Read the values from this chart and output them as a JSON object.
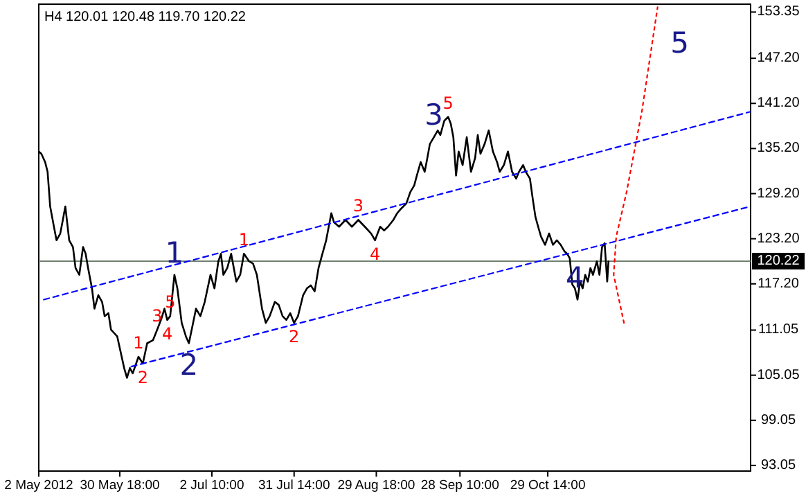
{
  "chart_data": {
    "type": "line",
    "title": "H4  120.01 120.48 119.70 120.22",
    "xlim": [
      "2012-05-02T00:00",
      "2013-01-09T13:00"
    ],
    "ylim": [
      92.3,
      154.4
    ],
    "xticks": [
      {
        "value": "2012-05-02T00:00",
        "label": "2 May 2012"
      },
      {
        "value": "2012-05-30T18:00",
        "label": "30 May 18:00"
      },
      {
        "value": "2012-07-02T10:00",
        "label": "2 Jul 10:00"
      },
      {
        "value": "2012-07-31T14:00",
        "label": "31 Jul 14:00"
      },
      {
        "value": "2012-08-29T18:00",
        "label": "29 Aug 18:00"
      },
      {
        "value": "2012-09-28T10:00",
        "label": "28 Sep 10:00"
      },
      {
        "value": "2012-10-29T14:00",
        "label": "29 Oct 14:00"
      }
    ],
    "yticks": [
      93.05,
      99.05,
      105.05,
      111.05,
      {
        "value": 117.2,
        "label": "117.20"
      },
      {
        "value": 123.2,
        "label": "123.20"
      },
      {
        "value": 129.2,
        "label": "129.20"
      },
      {
        "value": 135.2,
        "label": "135.20"
      },
      {
        "value": 141.2,
        "label": "141.20"
      },
      {
        "value": 147.2,
        "label": "147.20"
      },
      153.35
    ],
    "grid": false,
    "ref_lines": [
      {
        "axis": "y",
        "value": 120.22,
        "label": "120.22",
        "color": "#708070"
      }
    ],
    "annotations": [
      {
        "text": "1",
        "x": "2012-06-19T03:00",
        "y": 118.4
      },
      {
        "text": "2",
        "x": "2012-06-24T06:00",
        "y": 109.3
      },
      {
        "text": "3",
        "x": "2012-09-19T04:00",
        "y": 136.7
      },
      {
        "text": "4",
        "x": "2012-11-08T05:00",
        "y": 115.1
      },
      {
        "text": "5",
        "x": "2012-12-07T13:00",
        "y": 154.0
      },
      {
        "text": "1",
        "x": "2012-07-13T19:00",
        "y": 121.2
      },
      {
        "text": "3",
        "x": "2012-08-23T09:00",
        "y": 125.7
      },
      {
        "text": "5",
        "x": "2012-09-24T06:00",
        "y": 139.4
      },
      {
        "text": "4",
        "x": "2012-08-29T07:00",
        "y": 123.0
      },
      {
        "text": "2",
        "x": "2012-07-31T14:00",
        "y": 112.0
      },
      {
        "text": "1",
        "x": "2012-06-06T09:00",
        "y": 107.5
      },
      {
        "text": "2",
        "x": "2012-06-07T22:00",
        "y": 106.6
      },
      {
        "text": "3",
        "x": "2012-06-13T00:00",
        "y": 111.1
      },
      {
        "text": "4",
        "x": "2012-06-16T14:00",
        "y": 112.4
      },
      {
        "text": "5",
        "x": "2012-06-17T15:00",
        "y": 112.9
      }
    ],
    "series": [
      {
        "color": "#000000",
        "line_style": "solid",
        "x": [
          "2012-05-02T00:00",
          "2012-05-02T22:00",
          "2012-05-04T06:00",
          "2012-05-05T03:00",
          "2012-05-06T01:00",
          "2012-05-07T09:00",
          "2012-05-08T07:00",
          "2012-05-09T15:00",
          "2012-05-10T13:00",
          "2012-05-11T10:00",
          "2012-05-12T19:00",
          "2012-05-14T03:00",
          "2012-05-15T01:00",
          "2012-05-16T09:00",
          "2012-05-17T17:00",
          "2012-05-18T15:00",
          "2012-05-19T12:00",
          "2012-05-20T21:00",
          "2012-05-21T18:00",
          "2012-05-23T03:00",
          "2012-05-24T11:00",
          "2012-05-25T09:00",
          "2012-05-26T17:00",
          "2012-05-27T15:00",
          "2012-05-29T20:00",
          "2012-06-01T07:00",
          "2012-06-02T07:00",
          "2012-06-03T08:00",
          "2012-06-04T08:00",
          "2012-06-06T09:00",
          "2012-06-07T22:00",
          "2012-06-09T11:00",
          "2012-06-11T12:00",
          "2012-06-13T00:00",
          "2012-06-14T13:00",
          "2012-06-15T14:00",
          "2012-06-16T14:00",
          "2012-06-17T15:00",
          "2012-06-19T03:00",
          "2012-06-20T04:00",
          "2012-06-21T17:00",
          "2012-06-23T05:00",
          "2012-06-24T06:00",
          "2012-06-25T06:00",
          "2012-06-26T19:00",
          "2012-06-28T08:00",
          "2012-06-29T21:00",
          "2012-07-01T22:00",
          "2012-07-03T08:00",
          "2012-07-04T17:00",
          "2012-07-05T15:00",
          "2012-07-06T12:00",
          "2012-07-07T21:00",
          "2012-07-09T06:00",
          "2012-07-11T02:00",
          "2012-07-12T11:00",
          "2012-07-13T19:00",
          "2012-07-15T15:00",
          "2012-07-17T00:00",
          "2012-07-18T09:00",
          "2012-07-20T05:00",
          "2012-07-21T13:00",
          "2012-07-22T22:00",
          "2012-07-24T18:00",
          "2012-07-26T03:00",
          "2012-07-27T12:00",
          "2012-07-28T20:00",
          "2012-07-30T05:00",
          "2012-07-31T14:00",
          "2012-08-01T23:00",
          "2012-08-03T19:00",
          "2012-08-05T03:00",
          "2012-08-06T12:00",
          "2012-08-07T21:00",
          "2012-08-09T06:00",
          "2012-08-10T15:00",
          "2012-08-11T23:00",
          "2012-08-12T21:00",
          "2012-08-13T19:00",
          "2012-08-14T17:00",
          "2012-08-16T13:00",
          "2012-08-18T20:00",
          "2012-08-21T02:00",
          "2012-08-23T09:00",
          "2012-08-25T16:00",
          "2012-08-27T22:00",
          "2012-08-29T07:00",
          "2012-08-31T03:00",
          "2012-09-01T13:00",
          "2012-09-02T22:00",
          "2012-09-04T19:00",
          "2012-09-06T04:00",
          "2012-09-07T13:00",
          "2012-09-09T10:00",
          "2012-09-10T19:00",
          "2012-09-12T05:00",
          "2012-09-13T03:00",
          "2012-09-14T12:00",
          "2012-09-15T22:00",
          "2012-09-16T20:00",
          "2012-09-17T18:00",
          "2012-09-19T04:00",
          "2012-09-20T13:00",
          "2012-09-21T11:00",
          "2012-09-22T21:00",
          "2012-09-24T06:00",
          "2012-09-25T04:00",
          "2012-09-26T02:00",
          "2012-09-27T01:00",
          "2012-09-27T23:00",
          "2012-09-29T09:00",
          "2012-09-30T20:00",
          "2012-10-02T08:00",
          "2012-10-03T19:00",
          "2012-10-04T18:00",
          "2012-10-05T17:00",
          "2012-10-07T04:00",
          "2012-10-08T15:00",
          "2012-10-10T03:00",
          "2012-10-11T14:00",
          "2012-10-12T13:00",
          "2012-10-14T00:00",
          "2012-10-15T11:00",
          "2012-10-16T22:00",
          "2012-10-18T09:00",
          "2012-10-19T09:00",
          "2012-10-20T20:00",
          "2012-10-21T19:00",
          "2012-10-23T06:00",
          "2012-10-24T06:00",
          "2012-10-25T05:00",
          "2012-10-26T04:00",
          "2012-10-27T04:00",
          "2012-10-28T15:00",
          "2012-10-30T01:00",
          "2012-10-31T10:00",
          "2012-11-01T19:00",
          "2012-11-03T04:00",
          "2012-11-04T13:00",
          "2012-11-05T11:00",
          "2012-11-06T09:00",
          "2012-11-07T07:00",
          "2012-11-08T05:00",
          "2012-11-09T03:00",
          "2012-11-10T01:00",
          "2012-11-10T23:00",
          "2012-11-11T21:00",
          "2012-11-12T19:00",
          "2012-11-13T17:00",
          "2012-11-14T15:00",
          "2012-11-16T00:00",
          "2012-11-16T22:00",
          "2012-11-17T20:00",
          "2012-11-18T18:00",
          "2012-11-19T16:00",
          "2012-11-20T03:00"
        ],
        "values": [
          134.8,
          134.5,
          133.4,
          132.1,
          127.5,
          124.8,
          123.0,
          123.9,
          125.7,
          127.5,
          123.0,
          122.1,
          119.3,
          118.4,
          122.1,
          121.2,
          119.3,
          116.6,
          113.9,
          115.7,
          114.8,
          112.9,
          113.3,
          111.1,
          110.2,
          106.0,
          104.7,
          106.0,
          105.3,
          107.5,
          106.6,
          109.3,
          109.7,
          111.1,
          112.6,
          113.9,
          112.4,
          112.9,
          118.4,
          116.6,
          112.0,
          110.2,
          109.3,
          111.1,
          113.9,
          112.9,
          114.8,
          118.4,
          116.6,
          120.2,
          121.2,
          118.4,
          119.3,
          121.2,
          117.5,
          118.4,
          121.2,
          120.2,
          119.9,
          118.4,
          113.9,
          112.0,
          112.9,
          114.8,
          114.4,
          112.9,
          112.4,
          113.3,
          112.0,
          112.9,
          115.7,
          116.6,
          117.0,
          116.2,
          119.3,
          121.2,
          123.0,
          124.8,
          126.6,
          125.4,
          124.8,
          125.7,
          124.8,
          125.7,
          124.8,
          123.9,
          123.0,
          124.8,
          124.3,
          124.8,
          125.7,
          126.6,
          127.2,
          127.9,
          129.4,
          130.3,
          131.6,
          133.4,
          132.1,
          133.9,
          135.8,
          136.7,
          137.6,
          137.0,
          138.9,
          139.4,
          138.5,
          136.7,
          131.6,
          134.8,
          133.0,
          136.7,
          132.1,
          133.9,
          137.0,
          134.5,
          135.8,
          137.6,
          134.8,
          133.4,
          132.1,
          133.0,
          134.8,
          132.1,
          131.2,
          132.1,
          133.0,
          132.1,
          131.2,
          128.5,
          126.1,
          124.8,
          123.5,
          122.4,
          123.9,
          122.4,
          123.0,
          122.4,
          121.5,
          121.2,
          120.6,
          117.1,
          116.6,
          115.1,
          117.5,
          116.6,
          118.4,
          117.5,
          119.3,
          118.4,
          120.2,
          118.4,
          122.1,
          122.6,
          117.5,
          120.2
        ]
      },
      {
        "type": "line",
        "color": "#0000ff",
        "line_style": "dashed",
        "x": [
          "2012-05-03T19:00",
          "2013-01-09T13:00"
        ],
        "values": [
          115.1,
          140.1
        ]
      },
      {
        "type": "line",
        "color": "#0000ff",
        "line_style": "dashed",
        "x": [
          "2012-06-03T20:00",
          "2013-01-09T13:00"
        ],
        "values": [
          106.2,
          127.5
        ]
      },
      {
        "type": "line",
        "color": "#ff0000",
        "line_style": "dotted",
        "x": [
          "2012-11-25T15:00",
          "2012-11-21T23:00",
          "2012-11-22T21:00",
          "2012-11-26T13:00",
          "2012-12-02T01:00",
          "2012-12-07T13:00"
        ],
        "values": [
          112.0,
          118.4,
          123.5,
          129.4,
          140.3,
          154.0
        ]
      }
    ]
  }
}
